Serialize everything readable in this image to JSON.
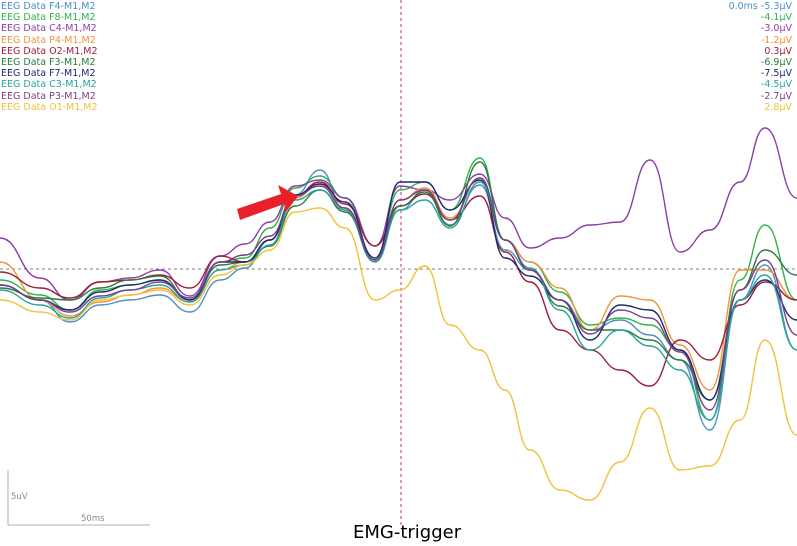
{
  "caption": "EMG-trigger",
  "cursor_time": "0.0ms",
  "scale": {
    "amplitude_label": "5uV",
    "time_label": "50ms"
  },
  "channels": [
    {
      "label": "EEG Data F4-M1,M2",
      "value": "-5.3µV",
      "color": "#4a90c8"
    },
    {
      "label": "EEG Data F8-M1,M2",
      "value": "-4.1µV",
      "color": "#2fb34a"
    },
    {
      "label": "EEG Data C4-M1,M2",
      "value": "-3.0µV",
      "color": "#8a3fa8"
    },
    {
      "label": "EEG Data P4-M1,M2",
      "value": "-1.2µV",
      "color": "#f0953a"
    },
    {
      "label": "EEG Data O2-M1,M2",
      "value": "0.3µV",
      "color": "#9c1f3a"
    },
    {
      "label": "EEG Data F3-M1,M2",
      "value": "-6.9µV",
      "color": "#2d7a3a"
    },
    {
      "label": "EEG Data F7-M1,M2",
      "value": "-7.5µV",
      "color": "#1c2c6e"
    },
    {
      "label": "EEG Data C3-M1,M2",
      "value": "-4.5µV",
      "color": "#2aa39a"
    },
    {
      "label": "EEG Data P3-M1,M2",
      "value": "-2.7µV",
      "color": "#7a3f8a"
    },
    {
      "label": "EEG Data O1-M1,M2",
      "value": "2.8µV",
      "color": "#f2c23a"
    }
  ],
  "colors": {
    "trigger_line": "#c0306a",
    "baseline": "#808080",
    "arrow": "#e8202a",
    "scale_bar": "#b0b0b0"
  }
}
